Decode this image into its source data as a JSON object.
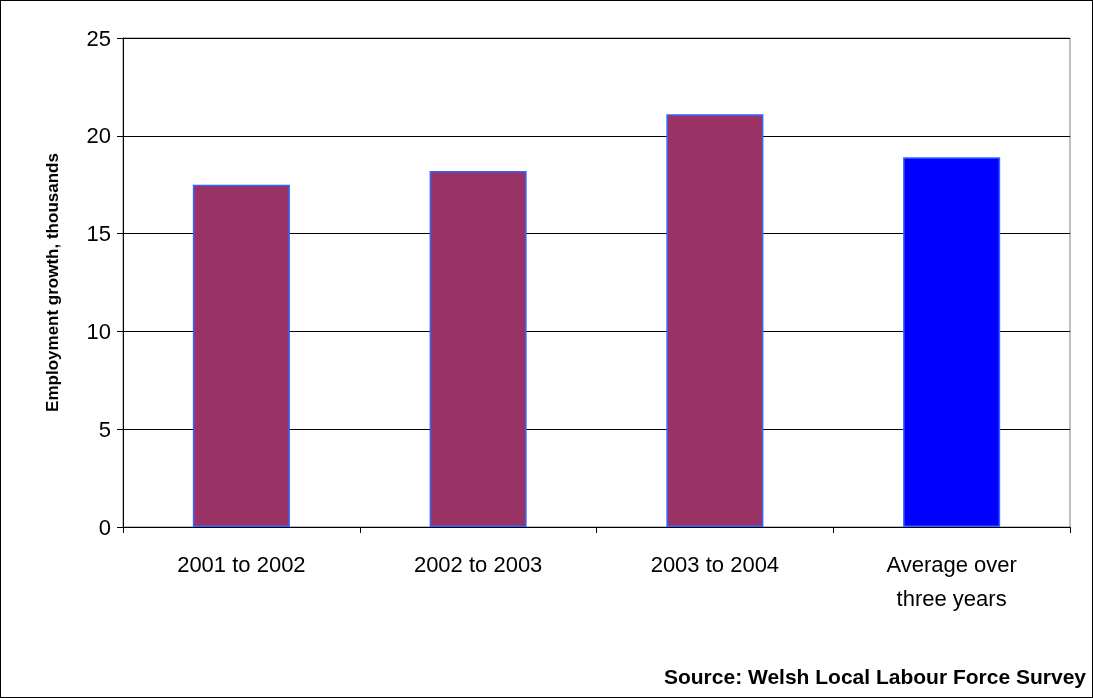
{
  "chart_data": {
    "type": "bar",
    "ylabel": "Employment growth, thousands",
    "categories": [
      "2001 to 2002",
      "2002 to 2003",
      "2003 to 2004",
      "Average over\nthree years"
    ],
    "values": [
      17.5,
      18.2,
      21.1,
      18.9
    ],
    "colors": [
      "#993366",
      "#993366",
      "#993366",
      "#0000ff"
    ],
    "ylim": [
      0,
      25
    ],
    "yticks": [
      0,
      5,
      10,
      15,
      20,
      25
    ],
    "grid": "y",
    "annotations": [
      "Source: Welsh Local Labour Force Survey"
    ]
  }
}
